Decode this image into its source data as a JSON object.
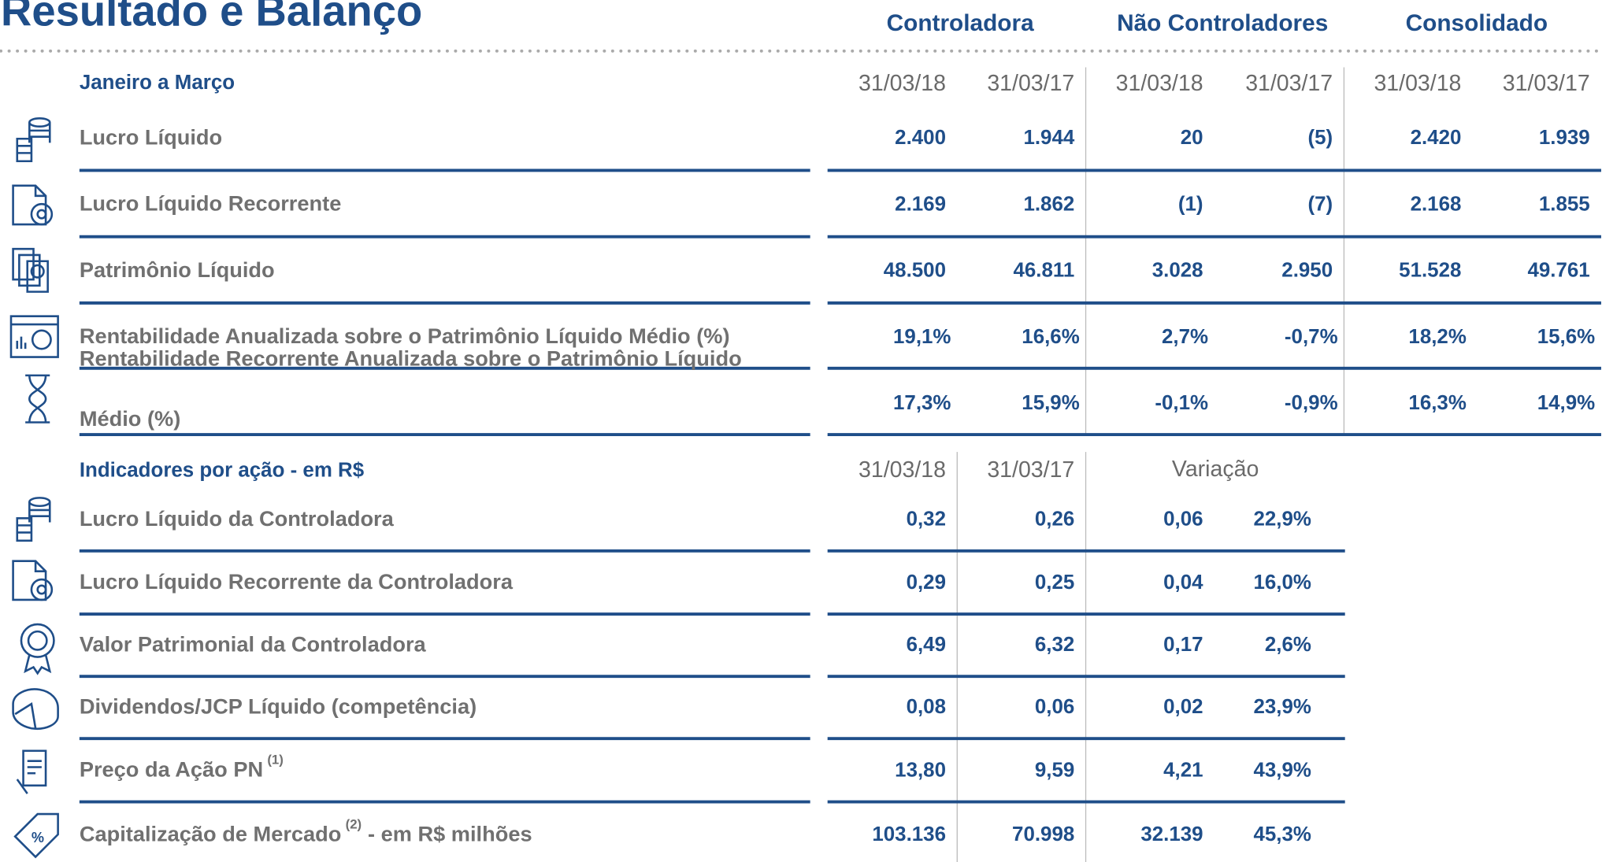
{
  "header": {
    "title": "Resultado e Balanço",
    "groups": [
      "Controladora",
      "Não Controladores",
      "Consolidado"
    ]
  },
  "section1": {
    "label": "Janeiro a Março",
    "dates": [
      "31/03/18",
      "31/03/17",
      "31/03/18",
      "31/03/17",
      "31/03/18",
      "31/03/17"
    ],
    "rows": [
      {
        "label": "Lucro Líquido",
        "values": [
          "2.400",
          "1.944",
          "20",
          "(5)",
          "2.420",
          "1.939"
        ]
      },
      {
        "label": "Lucro Líquido Recorrente",
        "values": [
          "2.169",
          "1.862",
          "(1)",
          "(7)",
          "2.168",
          "1.855"
        ]
      },
      {
        "label": "Patrimônio Líquido",
        "values": [
          "48.500",
          "46.811",
          "3.028",
          "2.950",
          "51.528",
          "49.761"
        ]
      },
      {
        "label": "Rentabilidade Anualizada sobre o Patrimônio Líquido Médio (%)",
        "values": [
          "19,1%",
          "16,6%",
          "2,7%",
          "-0,7%",
          "18,2%",
          "15,6%"
        ]
      },
      {
        "label": "Rentabilidade Recorrente Anualizada sobre o Patrimônio Líquido",
        "label2": "Médio (%)",
        "values": [
          "17,3%",
          "15,9%",
          "-0,1%",
          "-0,9%",
          "16,3%",
          "14,9%"
        ]
      }
    ]
  },
  "section2": {
    "label": "Indicadores por ação - em R$",
    "dates": [
      "31/03/18",
      "31/03/17"
    ],
    "variation": "Variação",
    "rows": [
      {
        "label": "Lucro Líquido da Controladora",
        "values": [
          "0,32",
          "0,26",
          "0,06",
          "22,9%"
        ]
      },
      {
        "label": "Lucro Líquido Recorrente da Controladora",
        "values": [
          "0,29",
          "0,25",
          "0,04",
          "16,0%"
        ]
      },
      {
        "label": "Valor Patrimonial da Controladora",
        "values": [
          "6,49",
          "6,32",
          "0,17",
          "2,6%"
        ]
      },
      {
        "label": "Dividendos/JCP Líquido (competência)",
        "values": [
          "0,08",
          "0,06",
          "0,02",
          "23,9%"
        ]
      },
      {
        "label": "Preço da Ação PN",
        "sup": "(1)",
        "values": [
          "13,80",
          "9,59",
          "4,21",
          "43,9%"
        ]
      },
      {
        "label": "Capitalização de Mercado",
        "sup": "(2)",
        "suffix": "- em R$ milhões",
        "values": [
          "103.136",
          "70.998",
          "32.139",
          "45,3%"
        ]
      }
    ]
  }
}
